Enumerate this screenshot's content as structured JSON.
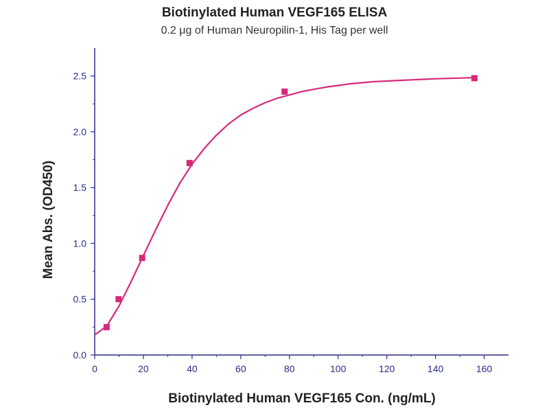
{
  "chart_data": {
    "type": "scatter",
    "title": "Biotinylated Human VEGF165 ELISA",
    "subtitle": "0.2 μg of Human Neuropilin-1, His Tag per well",
    "xlabel": "Biotinylated Human VEGF165 Con. (ng/mL)",
    "ylabel": "Mean Abs. (OD450)",
    "xlim": [
      0,
      170
    ],
    "ylim": [
      0,
      2.75
    ],
    "xticks": [
      "0",
      "20",
      "40",
      "60",
      "80",
      "100",
      "120",
      "140",
      "160"
    ],
    "yticks": [
      "0.0",
      "0.5",
      "1.0",
      "1.5",
      "2.0",
      "2.5"
    ],
    "grid": false,
    "series": [
      {
        "type": "scatter",
        "x": [
          4.9,
          9.8,
          19.5,
          39.0,
          78.0,
          156.0
        ],
        "y": [
          0.25,
          0.5,
          0.87,
          1.72,
          2.36,
          2.48
        ]
      },
      {
        "type": "line",
        "x": [
          0,
          5,
          10,
          15,
          20,
          25,
          30,
          35,
          40,
          45,
          50,
          55,
          60,
          65,
          70,
          75,
          80,
          85,
          90,
          95,
          100,
          105,
          110,
          115,
          120,
          125,
          130,
          135,
          140,
          145,
          150,
          155,
          156
        ],
        "y": [
          0.18,
          0.26,
          0.44,
          0.66,
          0.89,
          1.12,
          1.34,
          1.54,
          1.71,
          1.85,
          1.97,
          2.07,
          2.15,
          2.21,
          2.26,
          2.3,
          2.33,
          2.36,
          2.38,
          2.4,
          2.415,
          2.43,
          2.44,
          2.45,
          2.455,
          2.46,
          2.465,
          2.47,
          2.475,
          2.478,
          2.481,
          2.484,
          2.485
        ]
      }
    ]
  },
  "colors": {
    "series": "#d6287a",
    "axis": "#2b2b8a"
  }
}
